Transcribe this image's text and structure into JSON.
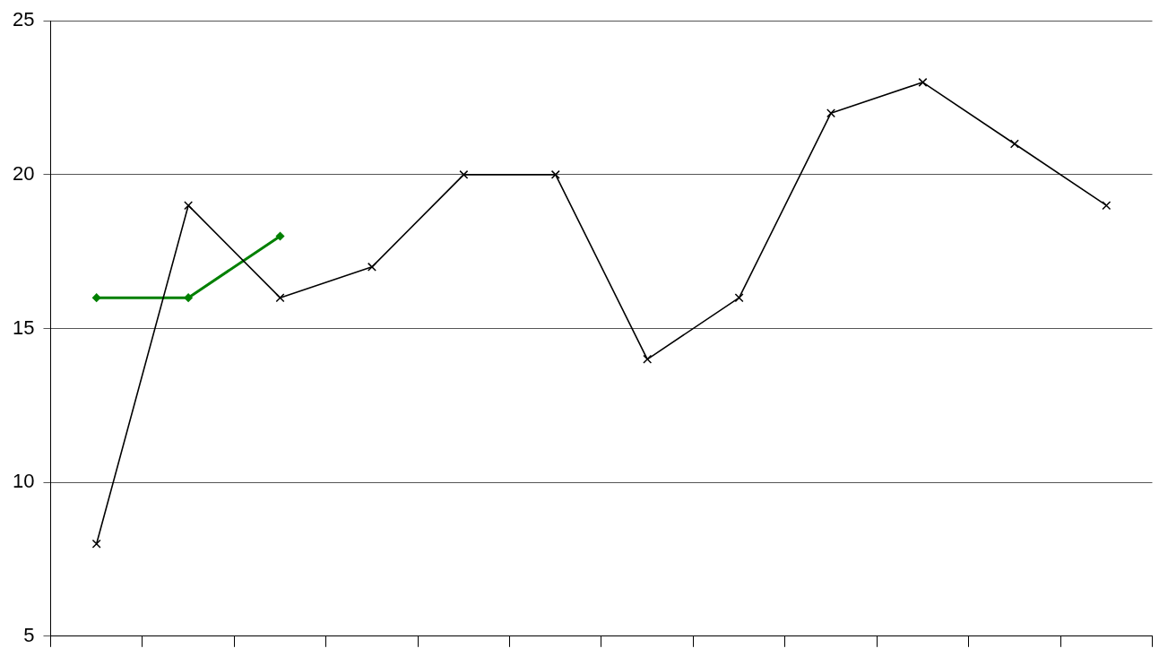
{
  "chart_data": {
    "type": "line",
    "categories": [
      null,
      null,
      null,
      null,
      null,
      null,
      null,
      null,
      null,
      null,
      null,
      null
    ],
    "series": [
      {
        "color": "#000000",
        "marker": "cross",
        "values": [
          8,
          19,
          16,
          17,
          20,
          20,
          14,
          16,
          22,
          23,
          21,
          19
        ]
      },
      {
        "color": "#008000",
        "marker": "diamond",
        "values": [
          16,
          16,
          18,
          null,
          null,
          null,
          null,
          null,
          null,
          null,
          null,
          null
        ]
      }
    ],
    "ylim": [
      5,
      25
    ],
    "yticks": [
      5,
      10,
      15,
      20,
      25
    ],
    "grid": "y",
    "legend": false,
    "tick_labels": "y"
  }
}
